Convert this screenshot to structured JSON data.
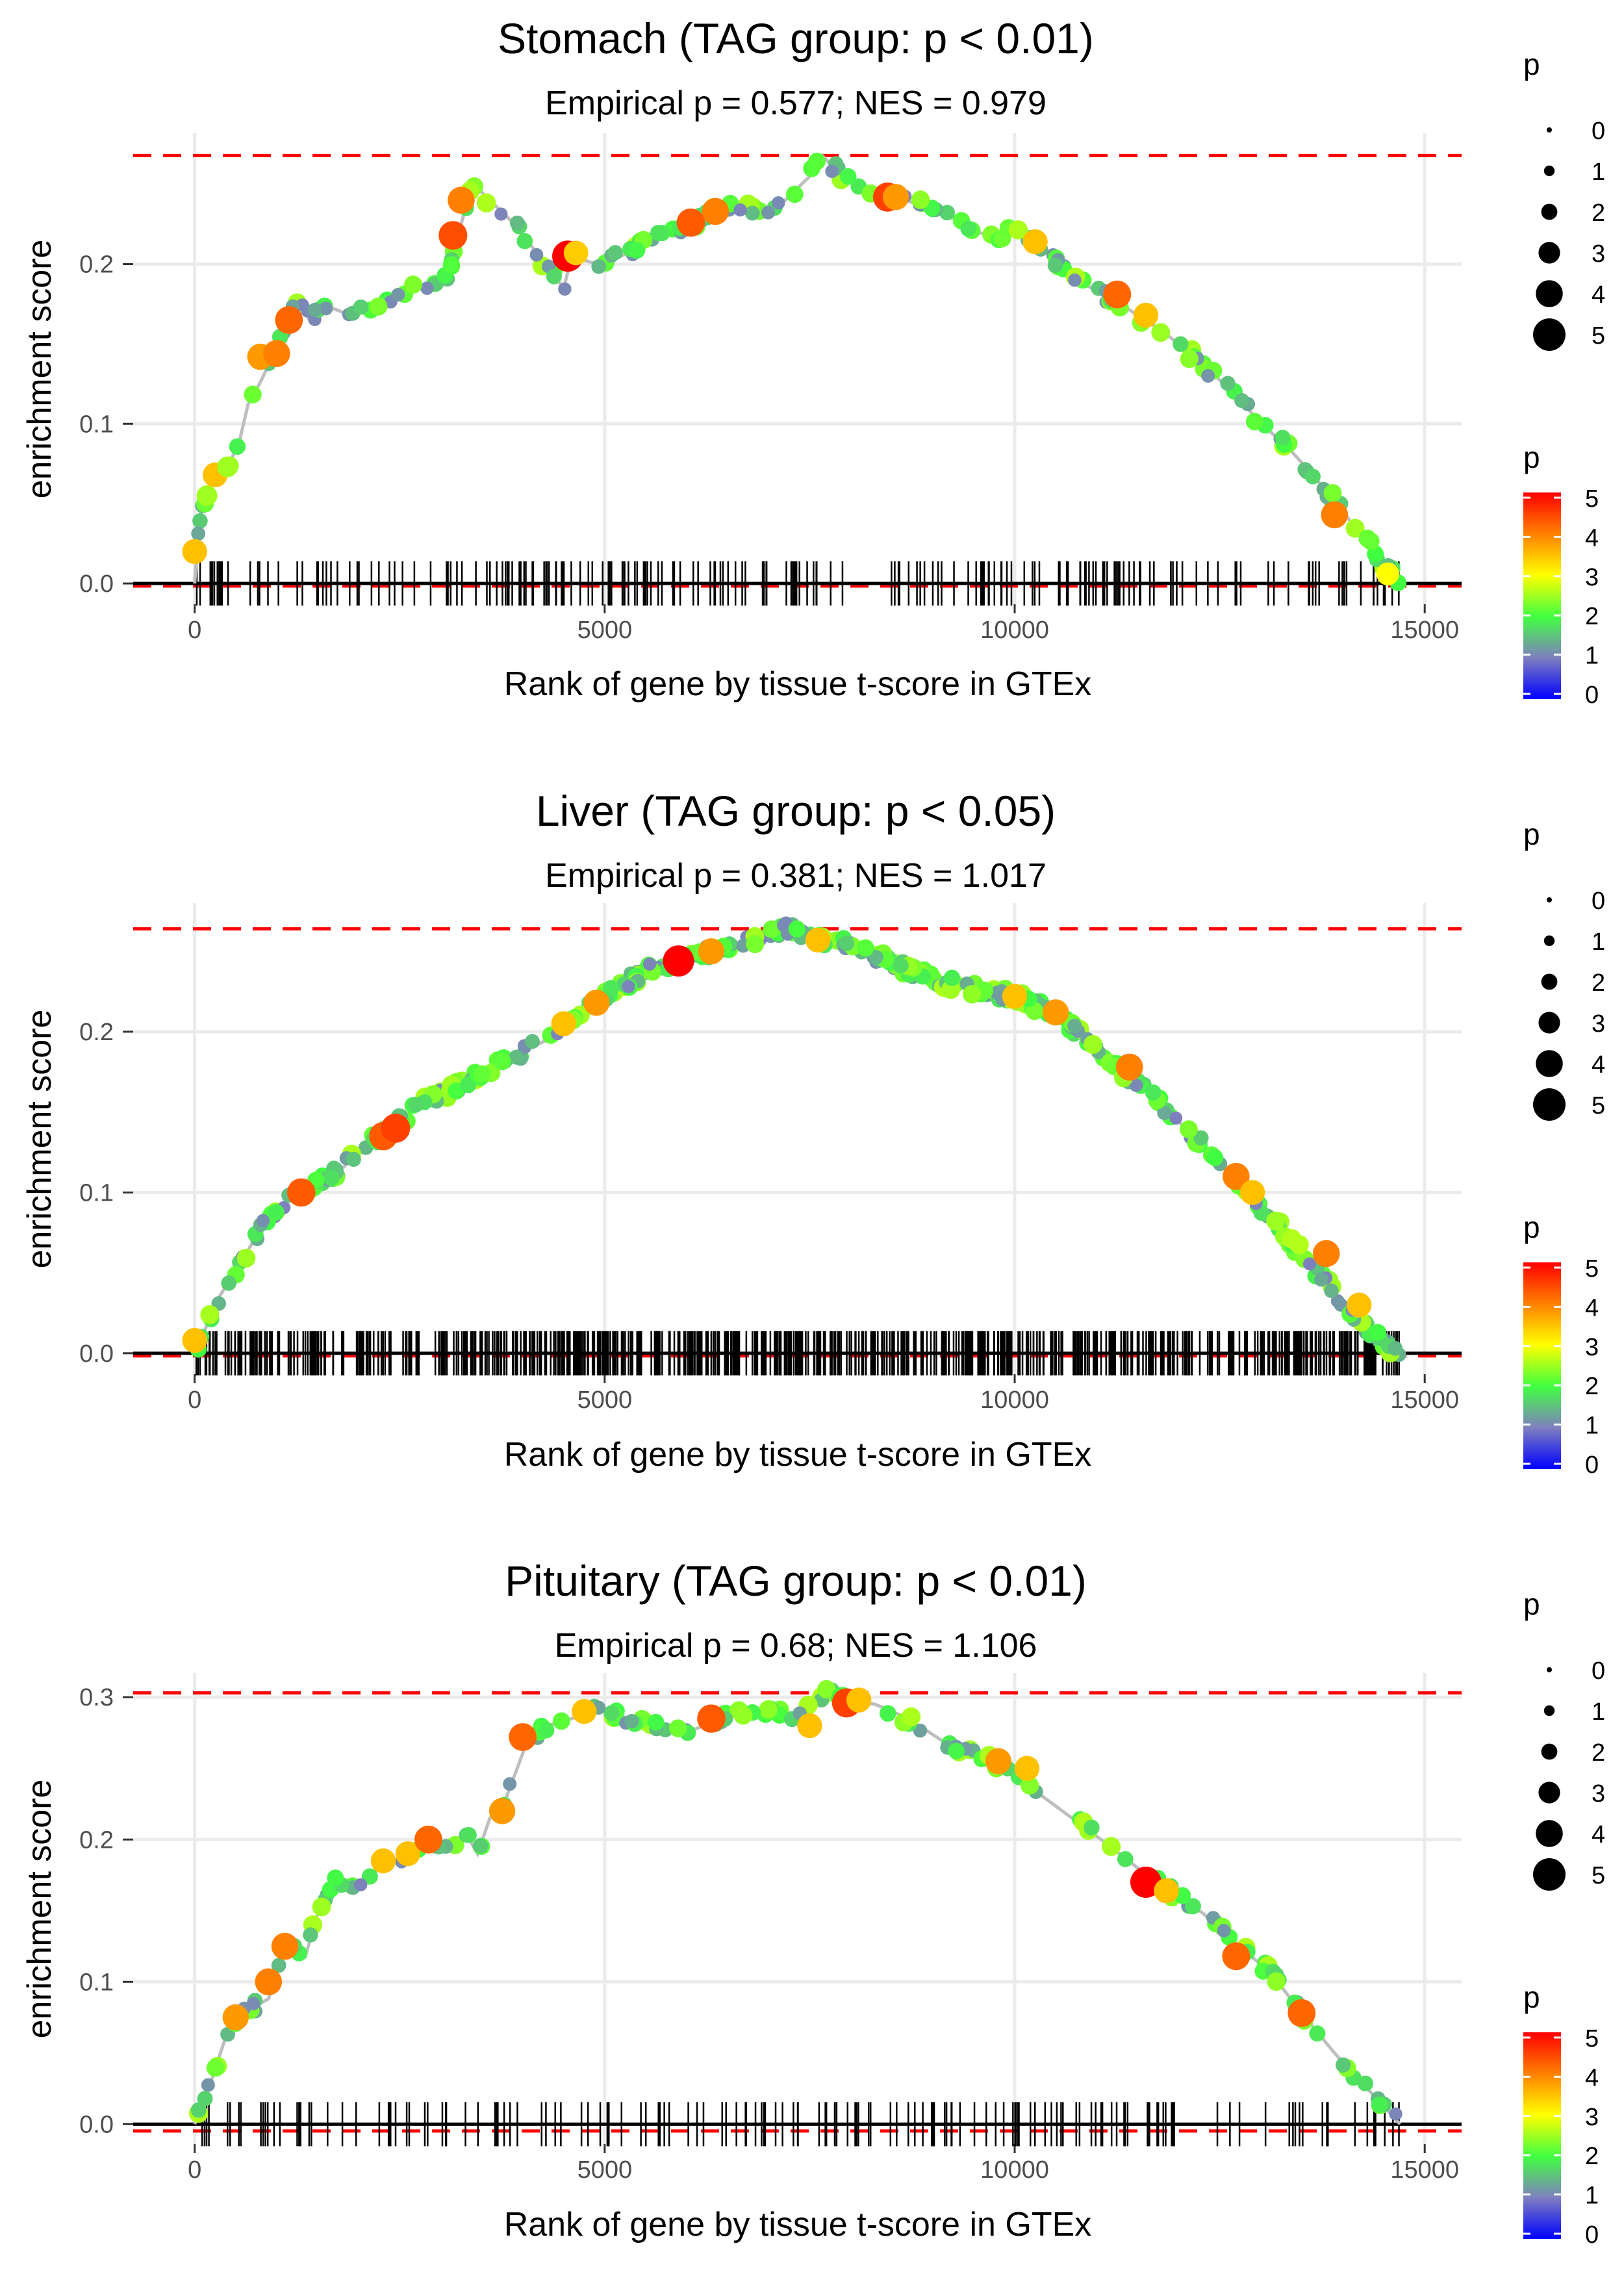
{
  "palette": {
    "grid": "#ebebeb",
    "axis_line": "#000000",
    "max_line": "#ff0000",
    "curve": "#bebebe",
    "scale_colors": [
      "#0000ff",
      "#7f7fbf",
      "#40ff40",
      "#ffff00",
      "#ff8000",
      "#ff0000"
    ]
  },
  "legend": {
    "size_title": "p",
    "size_levels": [
      "0",
      "1",
      "2",
      "3",
      "4",
      "5"
    ],
    "color_title": "p",
    "color_ticks": [
      "0",
      "1",
      "2",
      "3",
      "4",
      "5"
    ]
  },
  "chart_data": [
    {
      "type": "line",
      "title": "Stomach (TAG group: p < 0.01)",
      "subtitle": "Empirical p = 0.577; NES = 0.979",
      "xlabel": "Rank of gene by tissue t-score in GTEx",
      "ylabel": "enrichment score",
      "xlim": [
        -750,
        15450
      ],
      "ylim": [
        -0.013,
        0.282
      ],
      "x_ticks": [
        0,
        5000,
        10000,
        15000
      ],
      "x_tick_labels": [
        "0",
        "5000",
        "10000",
        "15000"
      ],
      "y_ticks": [
        0.0,
        0.1,
        0.2
      ],
      "y_tick_labels": [
        "0.0",
        "0.1",
        "0.2"
      ],
      "max_es": 0.268,
      "min_es": 0.0,
      "curve": [
        [
          0,
          0
        ],
        [
          30,
          0.022
        ],
        [
          80,
          0.045
        ],
        [
          150,
          0.058
        ],
        [
          250,
          0.066
        ],
        [
          400,
          0.072
        ],
        [
          550,
          0.09
        ],
        [
          650,
          0.112
        ],
        [
          800,
          0.126
        ],
        [
          950,
          0.142
        ],
        [
          1100,
          0.16
        ],
        [
          1250,
          0.178
        ],
        [
          1400,
          0.165
        ],
        [
          1550,
          0.175
        ],
        [
          1800,
          0.17
        ],
        [
          2000,
          0.172
        ],
        [
          2300,
          0.173
        ],
        [
          2600,
          0.182
        ],
        [
          2900,
          0.19
        ],
        [
          3100,
          0.195
        ],
        [
          3200,
          0.215
        ],
        [
          3300,
          0.235
        ],
        [
          3400,
          0.25
        ],
        [
          3900,
          0.225
        ],
        [
          4500,
          0.185
        ],
        [
          4600,
          0.205
        ],
        [
          4900,
          0.2
        ],
        [
          5200,
          0.205
        ],
        [
          5600,
          0.215
        ],
        [
          6000,
          0.223
        ],
        [
          6300,
          0.232
        ],
        [
          6600,
          0.238
        ],
        [
          6900,
          0.232
        ],
        [
          7200,
          0.24
        ],
        [
          7500,
          0.255
        ],
        [
          7650,
          0.268
        ],
        [
          7900,
          0.255
        ],
        [
          8200,
          0.248
        ],
        [
          8500,
          0.242
        ],
        [
          8800,
          0.238
        ],
        [
          9100,
          0.236
        ],
        [
          9400,
          0.222
        ],
        [
          9700,
          0.218
        ],
        [
          10000,
          0.22
        ],
        [
          10300,
          0.212
        ],
        [
          10600,
          0.198
        ],
        [
          10900,
          0.186
        ],
        [
          11200,
          0.178
        ],
        [
          11500,
          0.168
        ],
        [
          11800,
          0.158
        ],
        [
          12100,
          0.146
        ],
        [
          12400,
          0.132
        ],
        [
          12700,
          0.118
        ],
        [
          13000,
          0.1
        ],
        [
          13300,
          0.087
        ],
        [
          13600,
          0.07
        ],
        [
          13900,
          0.052
        ],
        [
          14200,
          0.032
        ],
        [
          14500,
          0.012
        ],
        [
          14700,
          0.0
        ]
      ],
      "points": [
        [
          0,
          0.02,
          3.5
        ],
        [
          150,
          0.055,
          2.5
        ],
        [
          250,
          0.068,
          3.5
        ],
        [
          400,
          0.073,
          2.5
        ],
        [
          800,
          0.142,
          3.8
        ],
        [
          1000,
          0.144,
          4
        ],
        [
          1150,
          0.165,
          4.2
        ],
        [
          3150,
          0.218,
          4.4
        ],
        [
          3250,
          0.24,
          4
        ],
        [
          4550,
          0.205,
          5
        ],
        [
          4650,
          0.207,
          3.4
        ],
        [
          6050,
          0.226,
          4.3
        ],
        [
          6350,
          0.233,
          4
        ],
        [
          8450,
          0.242,
          4.5
        ],
        [
          8550,
          0.242,
          3.8
        ],
        [
          10250,
          0.214,
          3.5
        ],
        [
          11250,
          0.181,
          4.2
        ],
        [
          11600,
          0.168,
          3.5
        ],
        [
          13900,
          0.043,
          4
        ],
        [
          14550,
          0.006,
          3
        ]
      ],
      "point_density": 190,
      "rug_count": 210
    },
    {
      "type": "line",
      "title": "Liver (TAG group: p < 0.05)",
      "subtitle": "Empirical p = 0.381; NES = 1.017",
      "xlabel": "Rank of gene by tissue t-score in GTEx",
      "ylabel": "enrichment score",
      "xlim": [
        -750,
        15450
      ],
      "ylim": [
        -0.013,
        0.28
      ],
      "x_ticks": [
        0,
        5000,
        10000,
        15000
      ],
      "x_tick_labels": [
        "0",
        "5000",
        "10000",
        "15000"
      ],
      "y_ticks": [
        0.0,
        0.1,
        0.2
      ],
      "y_tick_labels": [
        "0.0",
        "0.1",
        "0.2"
      ],
      "max_es": 0.264,
      "min_es": 0.0,
      "curve": [
        [
          0,
          0
        ],
        [
          300,
          0.035
        ],
        [
          600,
          0.06
        ],
        [
          900,
          0.085
        ],
        [
          1200,
          0.098
        ],
        [
          1500,
          0.108
        ],
        [
          1800,
          0.115
        ],
        [
          2100,
          0.13
        ],
        [
          2400,
          0.14
        ],
        [
          2800,
          0.157
        ],
        [
          3100,
          0.162
        ],
        [
          3500,
          0.175
        ],
        [
          3900,
          0.185
        ],
        [
          4300,
          0.195
        ],
        [
          4700,
          0.21
        ],
        [
          5100,
          0.225
        ],
        [
          5500,
          0.238
        ],
        [
          5900,
          0.245
        ],
        [
          6300,
          0.25
        ],
        [
          6800,
          0.256
        ],
        [
          7200,
          0.264
        ],
        [
          7600,
          0.258
        ],
        [
          8000,
          0.254
        ],
        [
          8400,
          0.245
        ],
        [
          8800,
          0.237
        ],
        [
          9200,
          0.23
        ],
        [
          9600,
          0.226
        ],
        [
          10000,
          0.222
        ],
        [
          10400,
          0.213
        ],
        [
          10800,
          0.198
        ],
        [
          11200,
          0.18
        ],
        [
          11600,
          0.164
        ],
        [
          12000,
          0.144
        ],
        [
          12400,
          0.124
        ],
        [
          12800,
          0.102
        ],
        [
          13200,
          0.08
        ],
        [
          13600,
          0.056
        ],
        [
          14000,
          0.032
        ],
        [
          14400,
          0.01
        ],
        [
          14700,
          0.0
        ]
      ],
      "points": [
        [
          0,
          0.008,
          3.5
        ],
        [
          1300,
          0.1,
          4.3
        ],
        [
          2300,
          0.135,
          4.3
        ],
        [
          2450,
          0.14,
          4.5
        ],
        [
          4500,
          0.205,
          3.5
        ],
        [
          4900,
          0.218,
          3.8
        ],
        [
          5900,
          0.244,
          5
        ],
        [
          6300,
          0.25,
          3.8
        ],
        [
          7600,
          0.257,
          3.5
        ],
        [
          10000,
          0.222,
          3.5
        ],
        [
          10500,
          0.212,
          3.8
        ],
        [
          11400,
          0.178,
          4
        ],
        [
          12700,
          0.11,
          4
        ],
        [
          12900,
          0.1,
          3.5
        ],
        [
          13800,
          0.062,
          4
        ],
        [
          14200,
          0.03,
          3.5
        ]
      ],
      "point_density": 400,
      "rug_count": 700
    },
    {
      "type": "line",
      "title": "Pituitary (TAG group: p < 0.01)",
      "subtitle": "Empirical p = 0.68; NES = 1.106",
      "xlabel": "Rank of gene by tissue t-score in GTEx",
      "ylabel": "enrichment score",
      "xlim": [
        -750,
        15450
      ],
      "ylim": [
        -0.014,
        0.317
      ],
      "x_ticks": [
        0,
        5000,
        10000,
        15000
      ],
      "x_tick_labels": [
        "0",
        "5000",
        "10000",
        "15000"
      ],
      "y_ticks": [
        0.0,
        0.1,
        0.2,
        0.3
      ],
      "y_tick_labels": [
        "0.0",
        "0.1",
        "0.2",
        "0.3"
      ],
      "max_es": 0.303,
      "min_es": -0.003,
      "curve": [
        [
          0,
          0
        ],
        [
          200,
          0.03
        ],
        [
          400,
          0.065
        ],
        [
          550,
          0.078
        ],
        [
          700,
          0.082
        ],
        [
          900,
          0.088
        ],
        [
          1050,
          0.115
        ],
        [
          1200,
          0.125
        ],
        [
          1350,
          0.118
        ],
        [
          1500,
          0.148
        ],
        [
          1700,
          0.17
        ],
        [
          2000,
          0.168
        ],
        [
          2300,
          0.182
        ],
        [
          2600,
          0.19
        ],
        [
          2900,
          0.196
        ],
        [
          3100,
          0.195
        ],
        [
          3300,
          0.205
        ],
        [
          3450,
          0.19
        ],
        [
          3600,
          0.215
        ],
        [
          3750,
          0.222
        ],
        [
          3900,
          0.245
        ],
        [
          4050,
          0.268
        ],
        [
          4300,
          0.28
        ],
        [
          4600,
          0.285
        ],
        [
          4900,
          0.292
        ],
        [
          5300,
          0.285
        ],
        [
          5700,
          0.28
        ],
        [
          6000,
          0.275
        ],
        [
          6400,
          0.285
        ],
        [
          6700,
          0.29
        ],
        [
          7000,
          0.292
        ],
        [
          7300,
          0.282
        ],
        [
          7550,
          0.295
        ],
        [
          7700,
          0.303
        ],
        [
          8000,
          0.298
        ],
        [
          8300,
          0.295
        ],
        [
          8700,
          0.285
        ],
        [
          9100,
          0.27
        ],
        [
          9500,
          0.26
        ],
        [
          9900,
          0.25
        ],
        [
          10300,
          0.232
        ],
        [
          10700,
          0.215
        ],
        [
          11100,
          0.198
        ],
        [
          11500,
          0.18
        ],
        [
          11900,
          0.164
        ],
        [
          12300,
          0.148
        ],
        [
          12700,
          0.126
        ],
        [
          13100,
          0.108
        ],
        [
          13500,
          0.078
        ],
        [
          13900,
          0.05
        ],
        [
          14300,
          0.025
        ],
        [
          14700,
          0.0
        ]
      ],
      "points": [
        [
          500,
          0.075,
          3.8
        ],
        [
          900,
          0.1,
          4
        ],
        [
          1100,
          0.125,
          4
        ],
        [
          2300,
          0.185,
          3.5
        ],
        [
          2600,
          0.19,
          3.5
        ],
        [
          2850,
          0.2,
          4.2
        ],
        [
          3750,
          0.22,
          3.8
        ],
        [
          4000,
          0.272,
          4.2
        ],
        [
          4750,
          0.29,
          3.5
        ],
        [
          6300,
          0.285,
          4.3
        ],
        [
          7500,
          0.28,
          3.5
        ],
        [
          7950,
          0.296,
          4.5
        ],
        [
          8100,
          0.298,
          3.5
        ],
        [
          9800,
          0.255,
          3.8
        ],
        [
          10150,
          0.25,
          3.5
        ],
        [
          11600,
          0.17,
          5
        ],
        [
          11850,
          0.164,
          3.5
        ],
        [
          12700,
          0.118,
          4.2
        ],
        [
          13500,
          0.078,
          4.2
        ]
      ],
      "point_density": 180,
      "rug_count": 160
    }
  ]
}
